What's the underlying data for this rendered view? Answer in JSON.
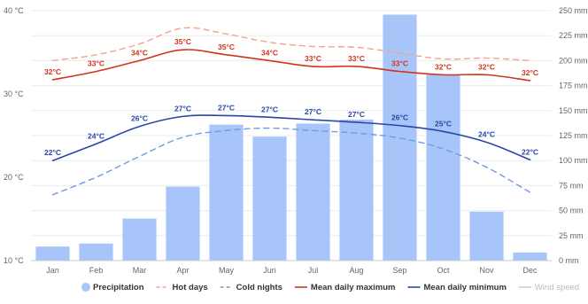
{
  "chart_data": {
    "type": "bar+line",
    "categories": [
      "Jan",
      "Feb",
      "Mar",
      "Apr",
      "May",
      "Jun",
      "Jul",
      "Aug",
      "Sep",
      "Oct",
      "Nov",
      "Dec"
    ],
    "left_axis": {
      "ticks": [
        "10 °C",
        "20 °C",
        "30 °C",
        "40 °C"
      ],
      "range": [
        10,
        40
      ]
    },
    "right_axis": {
      "ticks": [
        "0 mm",
        "25 mm",
        "50 mm",
        "75 mm",
        "100 mm",
        "125 mm",
        "150 mm",
        "175 mm",
        "200 mm",
        "225 mm",
        "250 mm"
      ],
      "range": [
        0,
        250
      ]
    },
    "precipitation": {
      "name": "Precipitation",
      "color": "#a8c5fa",
      "values": [
        14,
        17,
        42,
        74,
        136,
        124,
        137,
        141,
        246,
        186,
        49,
        8
      ]
    },
    "hot_days": {
      "name": "Hot days",
      "color": "#f4a290",
      "values": [
        34.0,
        34.7,
        36.0,
        37.9,
        37.2,
        36.2,
        35.7,
        35.6,
        34.9,
        34.2,
        34.3,
        34.0
      ]
    },
    "cold_nights": {
      "name": "Cold nights",
      "color": "#6f9be0",
      "values": [
        17.9,
        20.0,
        22.5,
        24.8,
        25.6,
        25.9,
        25.6,
        25.3,
        24.7,
        23.4,
        21.2,
        18.2
      ]
    },
    "mean_max": {
      "name": "Mean daily maximum",
      "color": "#d0341c",
      "values": [
        31.7,
        32.7,
        34.0,
        35.3,
        34.7,
        34.0,
        33.3,
        33.3,
        32.7,
        32.3,
        32.3,
        31.6
      ],
      "labels": [
        "32°C",
        "33°C",
        "34°C",
        "35°C",
        "35°C",
        "34°C",
        "33°C",
        "33°C",
        "33°C",
        "32°C",
        "32°C",
        "32°C"
      ]
    },
    "mean_min": {
      "name": "Mean daily minimum",
      "color": "#2847a8",
      "values": [
        22.0,
        24.0,
        26.1,
        27.3,
        27.4,
        27.2,
        26.9,
        26.6,
        26.2,
        25.5,
        24.2,
        22.1
      ],
      "labels": [
        "22°C",
        "24°C",
        "26°C",
        "27°C",
        "27°C",
        "27°C",
        "27°C",
        "27°C",
        "26°C",
        "25°C",
        "24°C",
        "22°C"
      ]
    },
    "wind_speed": {
      "name": "Wind speed",
      "color": "#cccccc"
    },
    "legend": [
      "Precipitation",
      "Hot days",
      "Cold nights",
      "Mean daily maximum",
      "Mean daily minimum",
      "Wind speed"
    ],
    "legend_position": "bottom",
    "grid": true
  }
}
